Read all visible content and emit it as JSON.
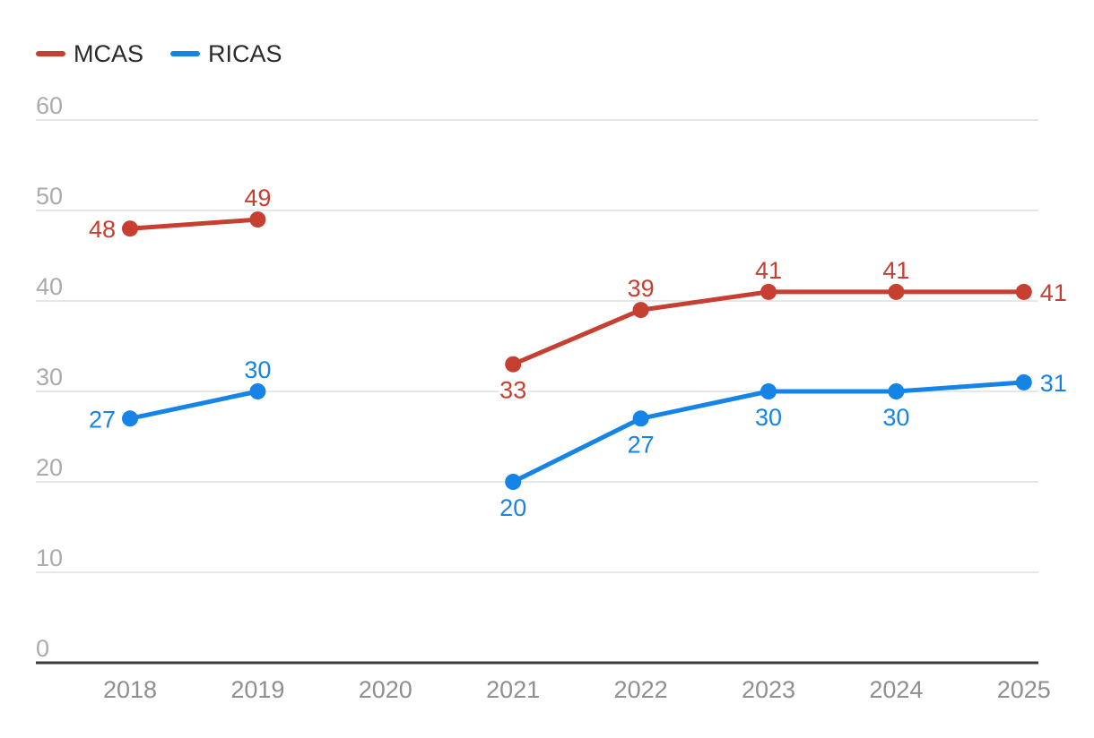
{
  "page": {
    "background": "#ffffff"
  },
  "legend": {
    "position": "top-left"
  },
  "chart_data": {
    "type": "line",
    "title": "",
    "xlabel": "",
    "ylabel": "",
    "x": [
      "2018",
      "2019",
      "2020",
      "2021",
      "2022",
      "2023",
      "2024",
      "2025"
    ],
    "series": [
      {
        "name": "MCAS",
        "color": "#c63f31",
        "values": [
          48,
          49,
          null,
          33,
          39,
          41,
          41,
          41
        ],
        "label_sides": [
          "left",
          "above",
          null,
          "below",
          "above",
          "above",
          "above",
          "right"
        ]
      },
      {
        "name": "RICAS",
        "color": "#1584e6",
        "values": [
          27,
          30,
          null,
          20,
          27,
          30,
          30,
          31
        ],
        "label_sides": [
          "left",
          "above",
          null,
          "below",
          "below",
          "below",
          "below",
          "right"
        ]
      }
    ],
    "ylim": [
      0,
      60
    ],
    "yticks": [
      0,
      10,
      20,
      30,
      40,
      50,
      60
    ],
    "grid": true,
    "gap_at": "2020",
    "legend_position": "top-left",
    "point_labels_visible": true,
    "colors": {
      "gridline": "#e7e7e7",
      "baseline": "#3d3d3d",
      "y_tick_text": "#ababab",
      "x_tick_text": "#8f8f8f",
      "legend_text": "#2a2a2a"
    }
  }
}
